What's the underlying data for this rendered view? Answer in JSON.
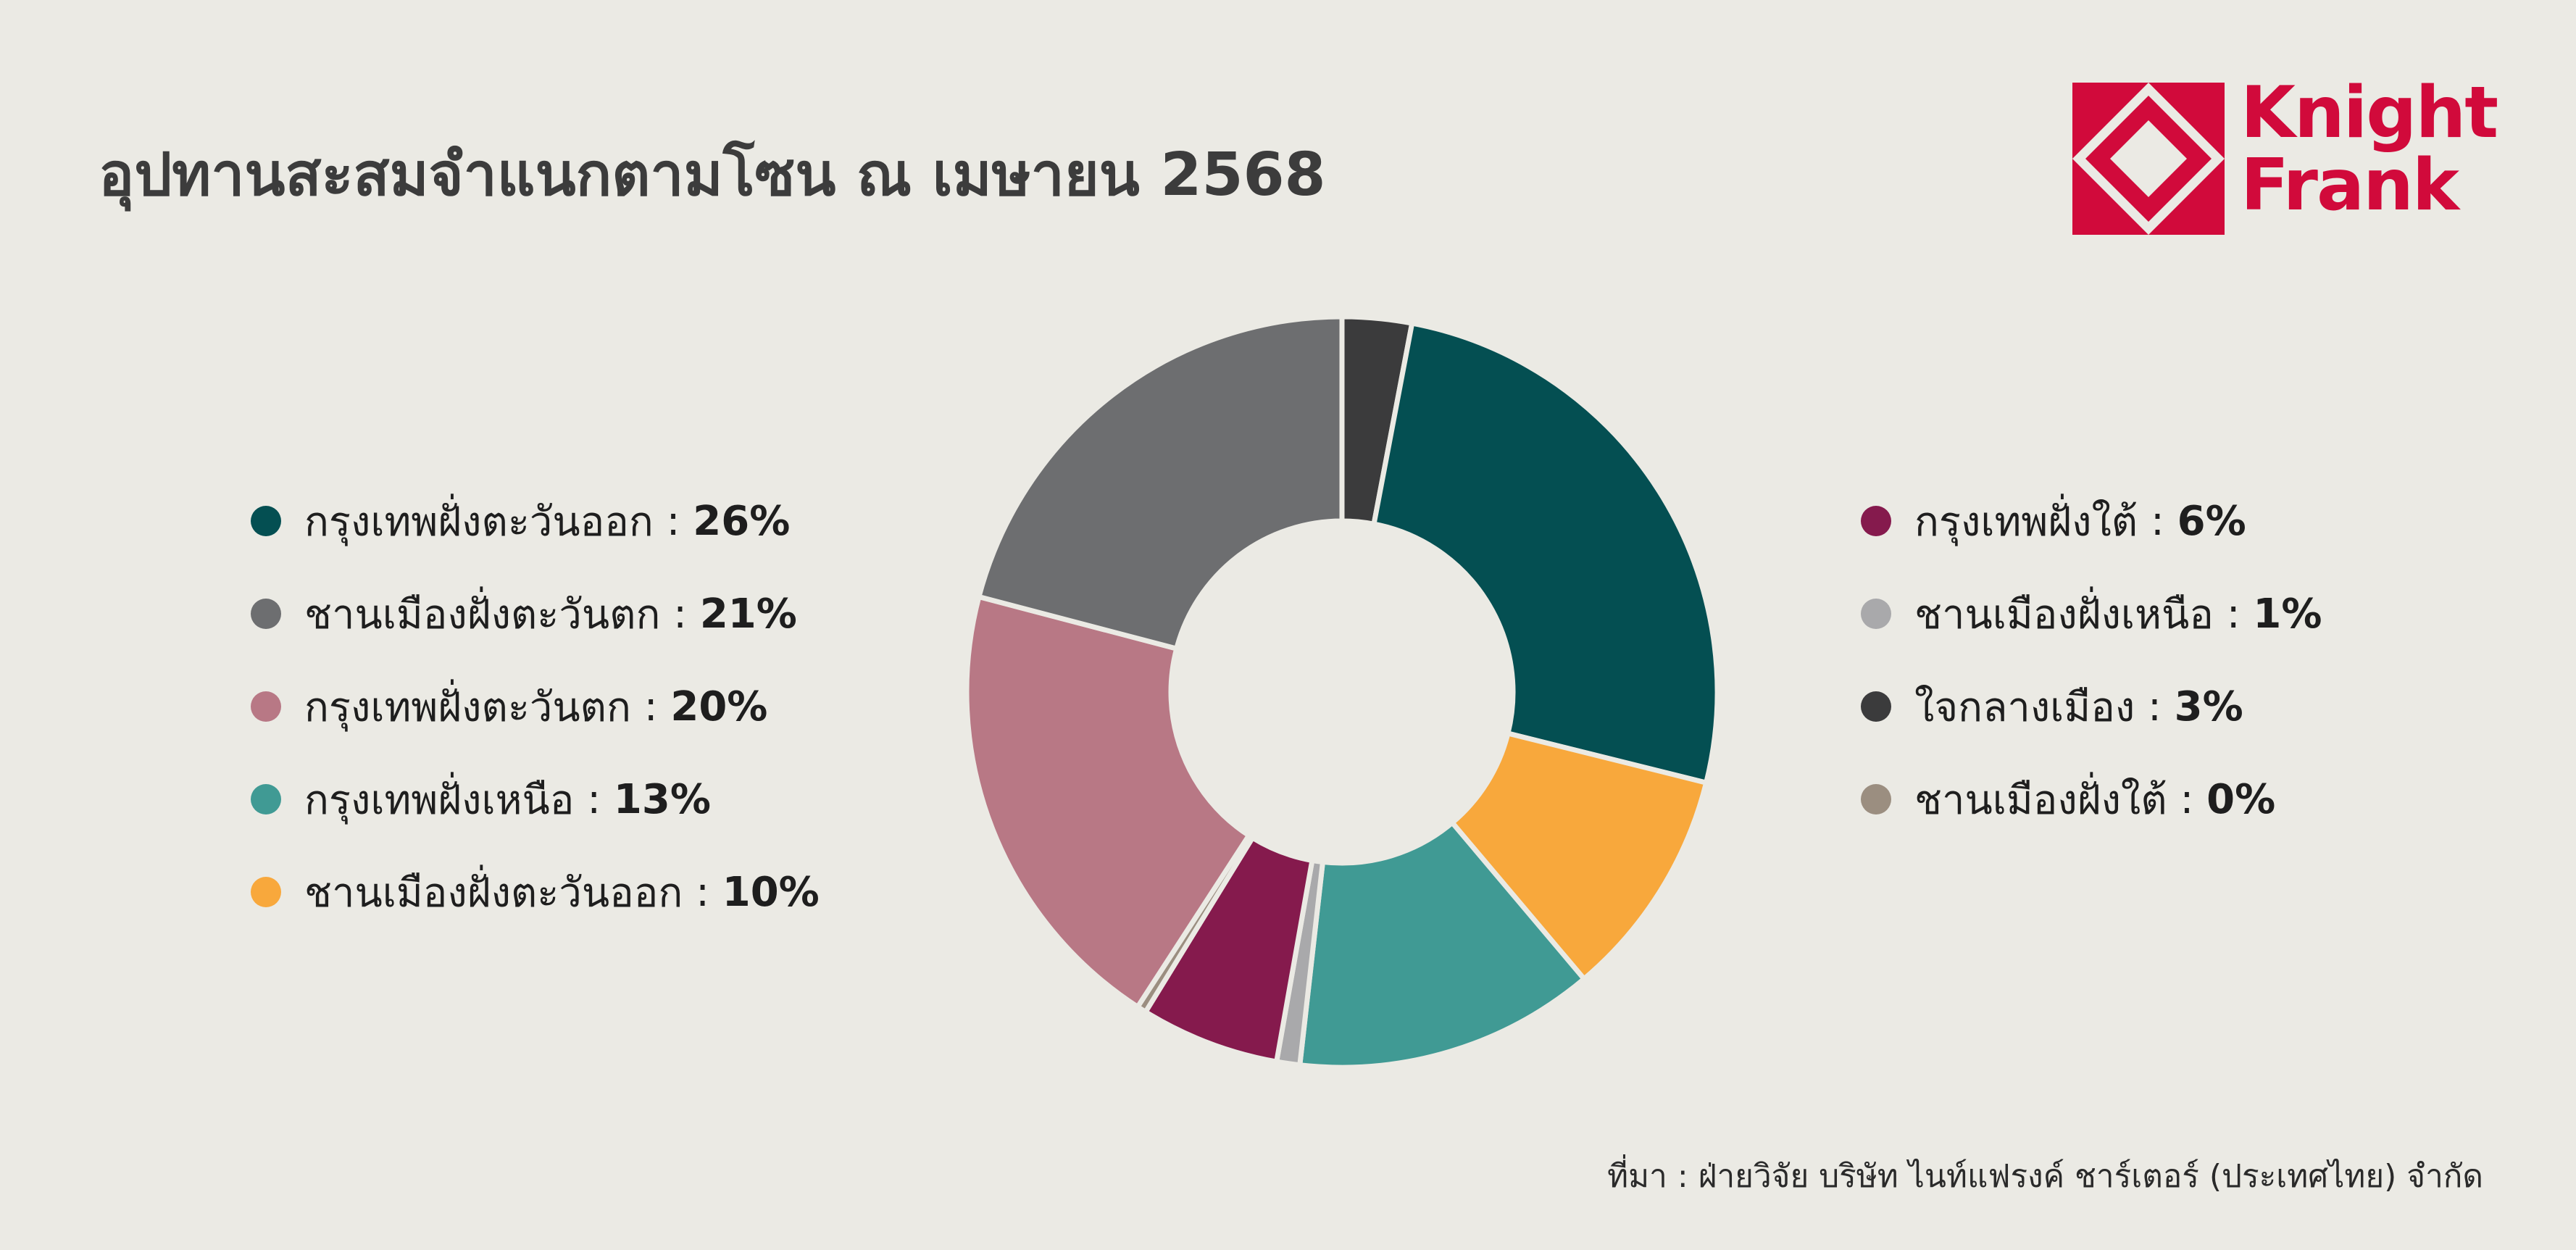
{
  "title": "อุปทานสะสมจำแนกตามโซน ณ เมษายน 2568",
  "logo": {
    "line1": "Knight",
    "line2": "Frank",
    "color": "#d10a3b"
  },
  "source": "ที่มา : ฝ่ายวิจัย บริษัท ไนท์แฟรงค์ ชาร์เตอร์ (ประเทศไทย) จำกัด",
  "separator": " : ",
  "chart_data": {
    "type": "pie",
    "donut": true,
    "legend_placement": "left-and-right",
    "slices": [
      {
        "label": "ใจกลางเมือง",
        "value": 3,
        "display": "3%",
        "color": "#3b3b3c"
      },
      {
        "label": "กรุงเทพฝั่งตะวันออก",
        "value": 26,
        "display": "26%",
        "color": "#044f52"
      },
      {
        "label": "ชานเมืองฝั่งตะวันออก",
        "value": 10,
        "display": "10%",
        "color": "#f8a83c"
      },
      {
        "label": "กรุงเทพฝั่งเหนือ",
        "value": 13,
        "display": "13%",
        "color": "#409a94"
      },
      {
        "label": "ชานเมืองฝั่งเหนือ",
        "value": 1,
        "display": "1%",
        "color": "#a9a9ab"
      },
      {
        "label": "กรุงเทพฝั่งใต้",
        "value": 6,
        "display": "6%",
        "color": "#851a4d"
      },
      {
        "label": "ชานเมืองฝั่งใต้",
        "value": 0.4,
        "display": "0%",
        "color": "#9b8e80"
      },
      {
        "label": "กรุงเทพฝั่งตะวันตก",
        "value": 20,
        "display": "20%",
        "color": "#b87885"
      },
      {
        "label": "ชานเมืองฝั่งตะวันตก",
        "value": 21,
        "display": "21%",
        "color": "#6d6e70"
      }
    ],
    "legend_left": [
      "กรุงเทพฝั่งตะวันออก",
      "ชานเมืองฝั่งตะวันตก",
      "กรุงเทพฝั่งตะวันตก",
      "กรุงเทพฝั่งเหนือ",
      "ชานเมืองฝั่งตะวันออก"
    ],
    "legend_right": [
      "กรุงเทพฝั่งใต้",
      "ชานเมืองฝั่งเหนือ",
      "ใจกลางเมือง",
      "ชานเมืองฝั่งใต้"
    ]
  }
}
